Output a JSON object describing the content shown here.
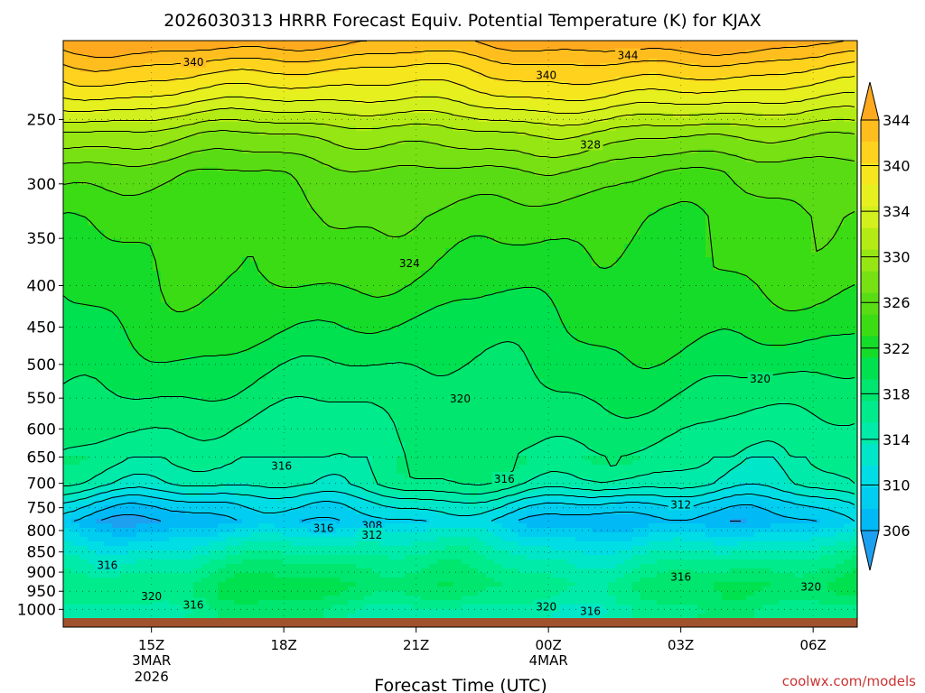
{
  "chart_data": {
    "type": "heatmap",
    "title": "2026030313 HRRR Forecast Equiv. Potential Temperature (K) for KJAX",
    "xlabel": "Forecast Time (UTC)",
    "ylabel": "",
    "credit": "coolwx.com/models",
    "x_ticks": [
      {
        "label": "15Z",
        "sub1": "3MAR",
        "sub2": "2026",
        "hour": 15
      },
      {
        "label": "18Z",
        "sub1": "",
        "sub2": "",
        "hour": 18
      },
      {
        "label": "21Z",
        "sub1": "",
        "sub2": "",
        "hour": 21
      },
      {
        "label": "00Z",
        "sub1": "4MAR",
        "sub2": "",
        "hour": 24
      },
      {
        "label": "03Z",
        "sub1": "",
        "sub2": "",
        "hour": 27
      },
      {
        "label": "06Z",
        "sub1": "",
        "sub2": "",
        "hour": 30
      }
    ],
    "x_range_hours": [
      13.0,
      31.0
    ],
    "y_scale": "log",
    "y_range_hpa": [
      200,
      1025
    ],
    "y_ticks": [
      "250",
      "300",
      "350",
      "400",
      "450",
      "500",
      "550",
      "600",
      "650",
      "700",
      "750",
      "800",
      "850",
      "900",
      "950",
      "1000"
    ],
    "colorbar": {
      "labels": [
        "306",
        "310",
        "314",
        "318",
        "322",
        "326",
        "330",
        "334",
        "340",
        "344"
      ],
      "levels": [
        306,
        308,
        310,
        312,
        314,
        316,
        318,
        320,
        322,
        324,
        326,
        328,
        330,
        332,
        334,
        336,
        338,
        340,
        342,
        344
      ],
      "colors": [
        "#1ea0f0",
        "#00b9f5",
        "#00cdf0",
        "#00dde4",
        "#00e6c8",
        "#00ebaa",
        "#00eb8c",
        "#00e66e",
        "#00e150",
        "#14dc28",
        "#3cdc14",
        "#5adc14",
        "#78e114",
        "#96e614",
        "#b4eb14",
        "#d2f01e",
        "#e6f01e",
        "#f5e61e",
        "#ffd21e",
        "#ffbe1e",
        "#ffaa1e"
      ]
    },
    "profile": [
      {
        "p": 200,
        "theta": 345
      },
      {
        "p": 215,
        "theta": 341
      },
      {
        "p": 235,
        "theta": 337
      },
      {
        "p": 260,
        "theta": 331
      },
      {
        "p": 290,
        "theta": 327
      },
      {
        "p": 330,
        "theta": 325
      },
      {
        "p": 380,
        "theta": 324
      },
      {
        "p": 450,
        "theta": 322
      },
      {
        "p": 520,
        "theta": 320
      },
      {
        "p": 600,
        "theta": 318
      },
      {
        "p": 660,
        "theta": 317
      },
      {
        "p": 700,
        "theta": 315.5
      },
      {
        "p": 740,
        "theta": 311
      },
      {
        "p": 780,
        "theta": 308
      },
      {
        "p": 820,
        "theta": 312
      },
      {
        "p": 870,
        "theta": 316
      },
      {
        "p": 930,
        "theta": 319
      },
      {
        "p": 970,
        "theta": 318
      },
      {
        "p": 1000,
        "theta": 316
      },
      {
        "p": 1025,
        "theta": 316
      }
    ],
    "contour_labels": [
      {
        "hour": 15.95,
        "p": 212,
        "text": "340"
      },
      {
        "hour": 25.8,
        "p": 208,
        "text": "344"
      },
      {
        "hour": 23.95,
        "p": 220,
        "text": "340"
      },
      {
        "hour": 24.95,
        "p": 268,
        "text": "328"
      },
      {
        "hour": 20.85,
        "p": 375,
        "text": "324"
      },
      {
        "hour": 22.0,
        "p": 550,
        "text": "320"
      },
      {
        "hour": 28.8,
        "p": 520,
        "text": "320"
      },
      {
        "hour": 17.95,
        "p": 665,
        "text": "316"
      },
      {
        "hour": 23.0,
        "p": 690,
        "text": "316"
      },
      {
        "hour": 27.0,
        "p": 742,
        "text": "312"
      },
      {
        "hour": 20.0,
        "p": 787,
        "text": "308"
      },
      {
        "hour": 18.9,
        "p": 793,
        "text": "316"
      },
      {
        "hour": 20.0,
        "p": 808,
        "text": "312"
      },
      {
        "hour": 14.0,
        "p": 880,
        "text": "316"
      },
      {
        "hour": 15.0,
        "p": 962,
        "text": "320"
      },
      {
        "hour": 15.95,
        "p": 985,
        "text": "316"
      },
      {
        "hour": 27.0,
        "p": 910,
        "text": "316"
      },
      {
        "hour": 29.95,
        "p": 936,
        "text": "320"
      },
      {
        "hour": 23.95,
        "p": 990,
        "text": "320"
      },
      {
        "hour": 24.95,
        "p": 1003,
        "text": "316"
      }
    ],
    "colors": {
      "ground": "#a0522d",
      "contour": "#000000",
      "credit": "#cc3333"
    }
  }
}
